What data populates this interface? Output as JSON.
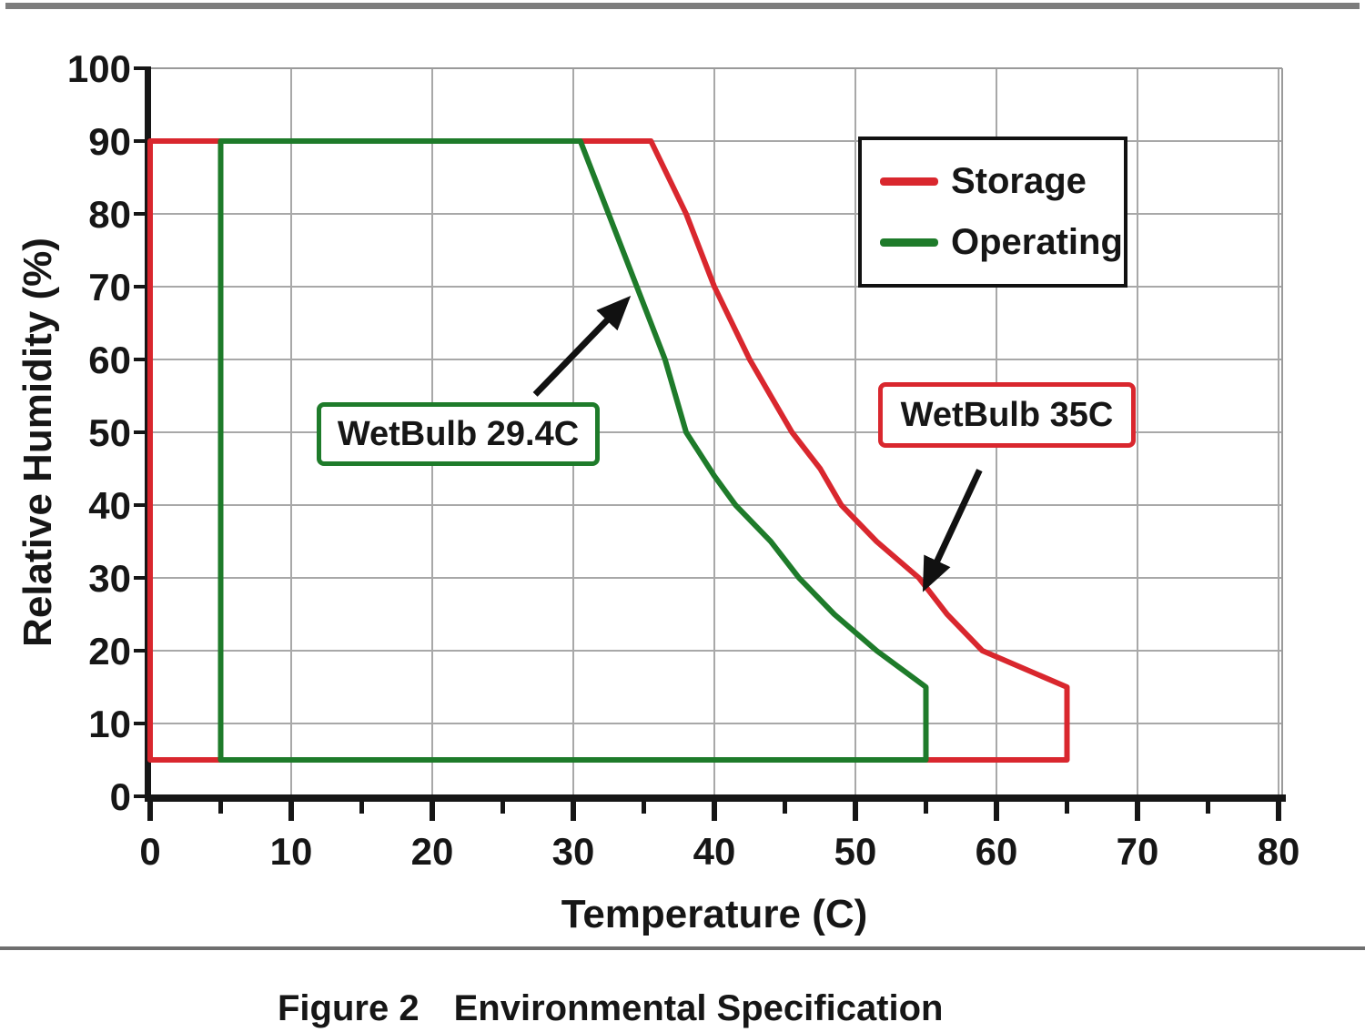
{
  "page": {
    "caption_label": "Figure 2",
    "caption_title": "Environmental Specification"
  },
  "legend": {
    "items": [
      {
        "label": "Storage",
        "color": "#d9272e"
      },
      {
        "label": "Operating",
        "color": "#1e7b2a"
      }
    ]
  },
  "chart_data": {
    "type": "line",
    "title": "",
    "xlabel": "Temperature (C)",
    "ylabel": "Relative Humidity (%)",
    "xlim": [
      0,
      80
    ],
    "ylim": [
      0,
      100
    ],
    "x_ticks": [
      0,
      10,
      20,
      30,
      40,
      50,
      60,
      70,
      80
    ],
    "x_minor_ticks": [
      5,
      15,
      25,
      35,
      45,
      55,
      65,
      75
    ],
    "y_ticks": [
      0,
      10,
      20,
      30,
      40,
      50,
      60,
      70,
      80,
      90,
      100
    ],
    "grid": true,
    "legend_position": "top-right",
    "style": {
      "grid_color": "#a8a8a8",
      "frame_color": "#9a9a9a",
      "axis_color": "#161616",
      "arrow_color": "#111111",
      "curve_width": 6
    },
    "series": [
      {
        "name": "Storage",
        "color": "#d9272e",
        "closed_region": true,
        "points": [
          [
            0,
            5
          ],
          [
            0,
            90
          ],
          [
            35.5,
            90
          ],
          [
            38,
            80
          ],
          [
            40,
            70
          ],
          [
            42.5,
            60
          ],
          [
            44,
            55
          ],
          [
            45.5,
            50
          ],
          [
            47.5,
            45
          ],
          [
            49,
            40
          ],
          [
            51.5,
            35
          ],
          [
            54.5,
            30
          ],
          [
            56.5,
            25
          ],
          [
            59,
            20
          ],
          [
            65,
            15
          ],
          [
            65,
            5
          ],
          [
            0,
            5
          ]
        ]
      },
      {
        "name": "Operating",
        "color": "#1e7b2a",
        "closed_region": true,
        "points": [
          [
            5,
            5
          ],
          [
            5,
            90
          ],
          [
            30.5,
            90
          ],
          [
            32.5,
            80
          ],
          [
            34.5,
            70
          ],
          [
            36.5,
            60
          ],
          [
            38,
            50
          ],
          [
            40,
            44
          ],
          [
            41.5,
            40
          ],
          [
            44,
            35
          ],
          [
            46,
            30
          ],
          [
            48.5,
            25
          ],
          [
            51.5,
            20
          ],
          [
            55,
            15
          ],
          [
            55,
            5
          ],
          [
            5,
            5
          ]
        ]
      }
    ],
    "annotations": [
      {
        "label": "WetBulb 29.4C",
        "color": "#1e7b2a",
        "arrow_from_xy": [
          27.3,
          55.2
        ],
        "points_at_xy": [
          33.7,
          68.0
        ]
      },
      {
        "label": "WetBulb 35C",
        "color": "#d9272e",
        "arrow_from_xy": [
          58.8,
          44.8
        ],
        "points_at_xy": [
          55.0,
          29.0
        ]
      }
    ]
  }
}
